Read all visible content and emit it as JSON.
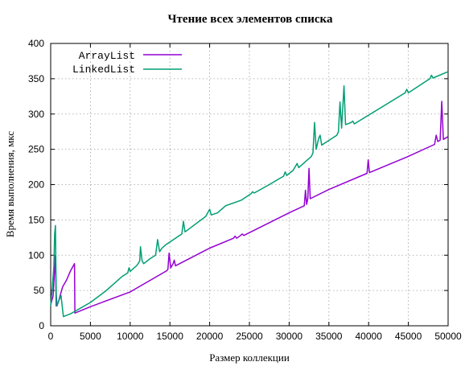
{
  "chart_data": {
    "type": "line",
    "title": "Чтение всех элементов списка",
    "xlabel": "Размер коллекции",
    "ylabel": "Время выполнения, мкс",
    "xlim": [
      0,
      50000
    ],
    "ylim": [
      0,
      400
    ],
    "x_ticks": [
      0,
      5000,
      10000,
      15000,
      20000,
      25000,
      30000,
      35000,
      40000,
      45000,
      50000
    ],
    "y_ticks": [
      0,
      50,
      100,
      150,
      200,
      250,
      300,
      350,
      400
    ],
    "grid": true,
    "legend_position": "top-left",
    "series": [
      {
        "name": "ArrayList",
        "color": "#9400d3",
        "points": [
          [
            0,
            30
          ],
          [
            300,
            42
          ],
          [
            600,
            100
          ],
          [
            700,
            28
          ],
          [
            1000,
            35
          ],
          [
            1500,
            55
          ],
          [
            2000,
            65
          ],
          [
            2500,
            78
          ],
          [
            3000,
            88
          ],
          [
            3050,
            18
          ],
          [
            5000,
            27
          ],
          [
            10000,
            48
          ],
          [
            14600,
            78
          ],
          [
            14750,
            80
          ],
          [
            14900,
            103
          ],
          [
            15100,
            82
          ],
          [
            15400,
            88
          ],
          [
            15550,
            93
          ],
          [
            15700,
            85
          ],
          [
            20000,
            110
          ],
          [
            23000,
            124
          ],
          [
            23200,
            127
          ],
          [
            23400,
            124
          ],
          [
            23900,
            128
          ],
          [
            24100,
            130
          ],
          [
            24300,
            128
          ],
          [
            30000,
            160
          ],
          [
            31900,
            170
          ],
          [
            32050,
            192
          ],
          [
            32200,
            172
          ],
          [
            32350,
            180
          ],
          [
            32500,
            223
          ],
          [
            32650,
            180
          ],
          [
            35000,
            193
          ],
          [
            39800,
            216
          ],
          [
            39950,
            235
          ],
          [
            40100,
            217
          ],
          [
            45000,
            240
          ],
          [
            48300,
            257
          ],
          [
            48500,
            270
          ],
          [
            48700,
            261
          ],
          [
            49000,
            263
          ],
          [
            49200,
            318
          ],
          [
            49400,
            264
          ],
          [
            50000,
            268
          ]
        ]
      },
      {
        "name": "LinkedList",
        "color": "#009e73",
        "points": [
          [
            0,
            28
          ],
          [
            200,
            55
          ],
          [
            400,
            85
          ],
          [
            500,
            130
          ],
          [
            600,
            142
          ],
          [
            700,
            45
          ],
          [
            800,
            28
          ],
          [
            1000,
            35
          ],
          [
            1300,
            43
          ],
          [
            1600,
            13
          ],
          [
            2500,
            17
          ],
          [
            5000,
            33
          ],
          [
            7000,
            50
          ],
          [
            8000,
            60
          ],
          [
            9000,
            70
          ],
          [
            9700,
            75
          ],
          [
            9850,
            82
          ],
          [
            10000,
            77
          ],
          [
            10500,
            82
          ],
          [
            10800,
            85
          ],
          [
            11000,
            88
          ],
          [
            11200,
            92
          ],
          [
            11300,
            112
          ],
          [
            11500,
            92
          ],
          [
            11700,
            88
          ],
          [
            12500,
            95
          ],
          [
            13200,
            100
          ],
          [
            13450,
            122
          ],
          [
            13700,
            105
          ],
          [
            14000,
            110
          ],
          [
            14300,
            113
          ],
          [
            14500,
            115
          ],
          [
            16500,
            130
          ],
          [
            16700,
            148
          ],
          [
            16900,
            133
          ],
          [
            19500,
            155
          ],
          [
            20000,
            165
          ],
          [
            20200,
            157
          ],
          [
            21000,
            160
          ],
          [
            22000,
            170
          ],
          [
            24000,
            178
          ],
          [
            25200,
            187
          ],
          [
            25400,
            190
          ],
          [
            25600,
            188
          ],
          [
            27500,
            200
          ],
          [
            29300,
            212
          ],
          [
            29500,
            218
          ],
          [
            29700,
            213
          ],
          [
            30500,
            220
          ],
          [
            31000,
            230
          ],
          [
            31200,
            224
          ],
          [
            32800,
            240
          ],
          [
            33000,
            245
          ],
          [
            33200,
            288
          ],
          [
            33400,
            250
          ],
          [
            33700,
            265
          ],
          [
            33900,
            270
          ],
          [
            34100,
            256
          ],
          [
            36000,
            270
          ],
          [
            36200,
            275
          ],
          [
            36400,
            317
          ],
          [
            36600,
            280
          ],
          [
            36900,
            340
          ],
          [
            37100,
            285
          ],
          [
            37800,
            288
          ],
          [
            38000,
            290
          ],
          [
            38200,
            286
          ],
          [
            44600,
            330
          ],
          [
            44800,
            335
          ],
          [
            45000,
            330
          ],
          [
            47700,
            350
          ],
          [
            47900,
            355
          ],
          [
            48100,
            351
          ],
          [
            50000,
            360
          ]
        ]
      }
    ]
  }
}
